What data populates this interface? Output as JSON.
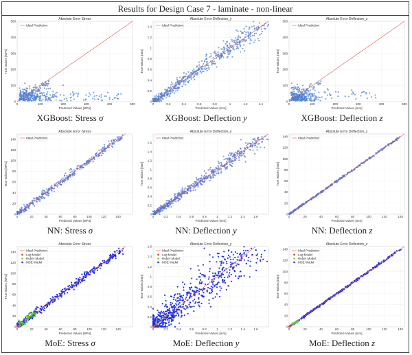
{
  "header": {
    "title": "Results for Design Case 7 - laminate - non-linear"
  },
  "legend_labels": {
    "ideal": "Ideal Prediction",
    "log": "Log Model",
    "huber": "Huber Model",
    "mse": "MSE Model"
  },
  "colors": {
    "ideal_line": "#e05555",
    "xgb_points": "#4a7fd4",
    "nn_points": "#4a6fd8",
    "mse_points": "#1a2be8",
    "huber_points": "#55dd33",
    "log_points": "#e03030",
    "grid": "#e6e6e6"
  },
  "chart_data": [
    {
      "id": "xgb_stress",
      "type": "scatter",
      "title": "Absolute Error Stress",
      "xlabel": "Predicted Values [MPa]",
      "ylabel": "True Values [MPa]",
      "caption_main": "XGBoost: Stress ",
      "caption_sym": "σ",
      "xlim": [
        0,
        500
      ],
      "ylim": [
        0,
        500
      ],
      "xticks": [
        0,
        100,
        200,
        300,
        400,
        500
      ],
      "yticks": [
        0,
        100,
        200,
        300,
        400,
        500
      ],
      "grid": true,
      "legend": "top-left",
      "series": [
        "ideal",
        "xgb"
      ],
      "pattern": "cluster_stress"
    },
    {
      "id": "xgb_defl_y",
      "type": "scatter",
      "title": "Absolute Error Deflection_y",
      "xlabel": "Predicted Values [mm]",
      "ylabel": "True Values [mm]",
      "caption_main": "XGBoost: Deflection ",
      "caption_sym": "y",
      "xlim": [
        0,
        1.5
      ],
      "ylim": [
        0,
        1.5
      ],
      "xticks": [
        0,
        0.2,
        0.4,
        0.6,
        0.8,
        1.0,
        1.2,
        1.4
      ],
      "yticks": [
        0,
        0.2,
        0.4,
        0.6,
        0.8,
        1.0,
        1.2,
        1.4
      ],
      "grid": true,
      "legend": "top-left",
      "series": [
        "ideal",
        "xgb"
      ],
      "pattern": "diag_wide",
      "diag_max": 1.45,
      "spread": 0.05
    },
    {
      "id": "xgb_defl_z",
      "type": "scatter",
      "title": "Absolute Error Deflection_z",
      "xlabel": "Predicted Values [mm]",
      "ylabel": "True Values [mm]",
      "caption_main": "XGBoost: Deflection ",
      "caption_sym": "z",
      "xlim": [
        0,
        500
      ],
      "ylim": [
        0,
        500
      ],
      "xticks": [
        0,
        100,
        200,
        300,
        400,
        500
      ],
      "yticks": [
        0,
        100,
        200,
        300,
        400,
        500
      ],
      "grid": true,
      "legend": "top-left",
      "series": [
        "ideal",
        "xgb"
      ],
      "pattern": "cluster_defl"
    },
    {
      "id": "nn_stress",
      "type": "scatter",
      "title": "Absolute Error Stress",
      "xlabel": "Predicted Values [MPa]",
      "ylabel": "True Values [MPa]",
      "caption_main": "NN: Stress ",
      "caption_sym": "σ",
      "xlim": [
        0,
        160
      ],
      "ylim": [
        0,
        150
      ],
      "xticks": [
        0,
        20,
        40,
        60,
        80,
        100,
        120,
        140
      ],
      "yticks": [
        0,
        20,
        40,
        60,
        80,
        100,
        120,
        140
      ],
      "grid": true,
      "legend": "top-left",
      "series": [
        "ideal",
        "nn"
      ],
      "pattern": "diag",
      "diag_max": 145,
      "spread": 2.5
    },
    {
      "id": "nn_defl_y",
      "type": "scatter",
      "title": "Absolute Error Deflection_y",
      "xlabel": "Predicted Values [mm]",
      "ylabel": "True Values [mm]",
      "caption_main": "NN: Deflection ",
      "caption_sym": "y",
      "xlim": [
        0,
        1.8
      ],
      "ylim": [
        0,
        1.8
      ],
      "xticks": [
        0,
        0.2,
        0.4,
        0.6,
        0.8,
        1.0,
        1.2,
        1.4,
        1.6
      ],
      "yticks": [
        0,
        0.2,
        0.4,
        0.6,
        0.8,
        1.0,
        1.2,
        1.4,
        1.6
      ],
      "grid": true,
      "legend": "top-left",
      "series": [
        "ideal",
        "nn"
      ],
      "pattern": "diag_wide",
      "diag_max": 1.7,
      "spread": 0.045
    },
    {
      "id": "nn_defl_z",
      "type": "scatter",
      "title": "Absolute Error Deflection_z",
      "xlabel": "Predicted Values [mm]",
      "ylabel": "True Values [mm]",
      "caption_main": "NN: Deflection ",
      "caption_sym": "z",
      "xlim": [
        0,
        145
      ],
      "ylim": [
        0,
        145
      ],
      "xticks": [
        0,
        20,
        40,
        60,
        80,
        100,
        120,
        140
      ],
      "yticks": [
        0,
        20,
        40,
        60,
        80,
        100,
        120,
        140
      ],
      "grid": true,
      "legend": "top-left",
      "series": [
        "ideal",
        "nn"
      ],
      "pattern": "diag_tight",
      "diag_max": 140,
      "spread": 0.6
    },
    {
      "id": "moe_stress",
      "type": "scatter",
      "title": "Absolute Error Stress",
      "xlabel": "Predicted Values [MPa]",
      "ylabel": "True Values [MPa]",
      "caption_main": "MoE: Stress ",
      "caption_sym": "σ",
      "xlim": [
        0,
        160
      ],
      "ylim": [
        0,
        150
      ],
      "xticks": [
        0,
        20,
        40,
        60,
        80,
        100,
        120,
        140
      ],
      "yticks": [
        0,
        20,
        40,
        60,
        80,
        100,
        120,
        140
      ],
      "grid": true,
      "legend": "top-left",
      "series": [
        "ideal",
        "log",
        "huber",
        "mse"
      ],
      "pattern": "moe_diag",
      "diag_max": 145,
      "spread": 2.5,
      "huber_max": 25,
      "log_max": 6
    },
    {
      "id": "moe_defl_y",
      "type": "scatter",
      "title": "Absolute Error Deflection_y",
      "xlabel": "Predicted Values [mm]",
      "ylabel": "True Values [mm]",
      "caption_main": "MoE: Deflection ",
      "caption_sym": "y",
      "xlim": [
        0,
        1.8
      ],
      "ylim": [
        0,
        1.6
      ],
      "xticks": [
        0,
        0.2,
        0.4,
        0.6,
        0.8,
        1.0,
        1.2,
        1.4,
        1.6
      ],
      "yticks": [
        0,
        0.2,
        0.4,
        0.6,
        0.8,
        1.0,
        1.2,
        1.4,
        1.6
      ],
      "grid": true,
      "legend": "top-left",
      "series": [
        "ideal",
        "log",
        "huber",
        "mse"
      ],
      "pattern": "moe_wide",
      "diag_max": 1.55,
      "spread": 0.14
    },
    {
      "id": "moe_defl_z",
      "type": "scatter",
      "title": "Absolute Error Deflection_z",
      "xlabel": "Predicted Values [mm]",
      "ylabel": "True Values [mm]",
      "caption_main": "MoE: Deflection ",
      "caption_sym": "z",
      "xlim": [
        0,
        145
      ],
      "ylim": [
        0,
        145
      ],
      "xticks": [
        0,
        20,
        40,
        60,
        80,
        100,
        120,
        140
      ],
      "yticks": [
        0,
        20,
        40,
        60,
        80,
        100,
        120,
        140
      ],
      "grid": true,
      "legend": "top-left",
      "series": [
        "ideal",
        "log",
        "huber",
        "mse"
      ],
      "pattern": "moe_tight",
      "diag_max": 140,
      "spread": 0.6,
      "huber_max": 12,
      "log_max": 3
    }
  ]
}
